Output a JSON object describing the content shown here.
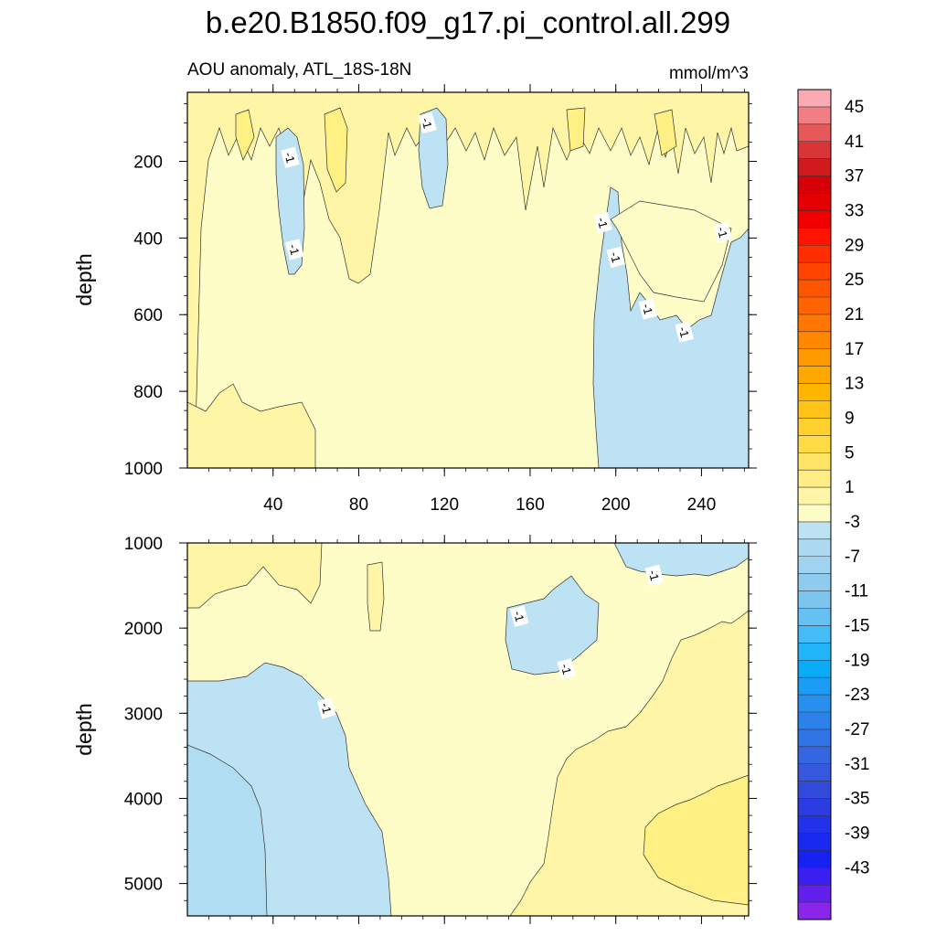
{
  "title": "b.e20.B1850.f09_g17.pi_control.all.299",
  "subtitle_left": "AOU anomaly, ATL_18S-18N",
  "subtitle_right": "mmol/m^3",
  "colors": {
    "bg_pos1": "#fefdc8",
    "pos3": "#fef6a6",
    "pos5": "#fef083",
    "neg": "#bde2f3",
    "neg_deep": "#b0ddf1",
    "label_bg": "#ffffff"
  },
  "chart_data": [
    {
      "type": "contour",
      "panel": "upper",
      "ylabel": "depth",
      "xlabel": "",
      "xlim": [
        0,
        262
      ],
      "ylim": [
        1000,
        20
      ],
      "x_ticks": [
        40,
        80,
        120,
        160,
        200,
        240
      ],
      "x_tick_labels": [
        "40",
        "80",
        "120",
        "160",
        "200",
        "240"
      ],
      "y_ticks": [
        200,
        400,
        600,
        800,
        1000
      ],
      "y_tick_labels": [
        "200",
        "400",
        "600",
        "800",
        "1000"
      ],
      "contour_labels": [
        {
          "text": "-1",
          "x": 48,
          "y": 190
        },
        {
          "text": "-1",
          "x": 112,
          "y": 100
        },
        {
          "text": "-1",
          "x": 50,
          "y": 430
        },
        {
          "text": "-1",
          "x": 194,
          "y": 360
        },
        {
          "text": "-1",
          "x": 200,
          "y": 450
        },
        {
          "text": "-1",
          "x": 215,
          "y": 585
        },
        {
          "text": "-1",
          "x": 232,
          "y": 645
        },
        {
          "text": "-1",
          "x": 250,
          "y": 385
        }
      ]
    },
    {
      "type": "contour",
      "panel": "lower",
      "ylabel": "depth",
      "xlabel": "",
      "xlim": [
        0,
        262
      ],
      "ylim": [
        5380,
        1000
      ],
      "x_ticks": [
        40,
        80,
        120,
        160,
        200,
        240
      ],
      "x_tick_labels": [
        "",
        "",
        "",
        "",
        "",
        ""
      ],
      "y_ticks": [
        1000,
        2000,
        3000,
        4000,
        5000
      ],
      "y_tick_labels": [
        "1000",
        "2000",
        "3000",
        "4000",
        "5000"
      ],
      "contour_labels": [
        {
          "text": "-1",
          "x": 218,
          "y": 1380
        },
        {
          "text": "-1",
          "x": 155,
          "y": 1860
        },
        {
          "text": "-1",
          "x": 177,
          "y": 2480
        },
        {
          "text": "-1",
          "x": 65,
          "y": 2940
        }
      ]
    }
  ],
  "colorbar": {
    "labels": [
      "45",
      "41",
      "37",
      "33",
      "29",
      "25",
      "21",
      "17",
      "13",
      "9",
      "5",
      "1",
      "-3",
      "-7",
      "-11",
      "-15",
      "-19",
      "-23",
      "-27",
      "-31",
      "-35",
      "-39",
      "-43"
    ],
    "colors": [
      "#f9aab2",
      "#f07e82",
      "#e75858",
      "#d83538",
      "#d01a1e",
      "#d50008",
      "#e40000",
      "#f20000",
      "#ff1400",
      "#ff2e00",
      "#ff4400",
      "#ff5400",
      "#ff6400",
      "#ff7600",
      "#ff8800",
      "#ff9a00",
      "#ffa800",
      "#ffb600",
      "#ffc417",
      "#ffd02e",
      "#ffdb45",
      "#ffe466",
      "#feee85",
      "#fef5a8",
      "#fefdc8",
      "#bde2f3",
      "#aedaf1",
      "#a0d3ef",
      "#8fcbee",
      "#7cc5ef",
      "#66c0f2",
      "#44bcf6",
      "#1fb5f8",
      "#0aabf7",
      "#1b9df5",
      "#2790ef",
      "#2d82ea",
      "#3174e6",
      "#3466e2",
      "#3658de",
      "#334bdd",
      "#2c3ce3",
      "#2331ea",
      "#1a29ef",
      "#1721f2",
      "#3a1ff0",
      "#6220ed",
      "#8a25ea"
    ]
  }
}
